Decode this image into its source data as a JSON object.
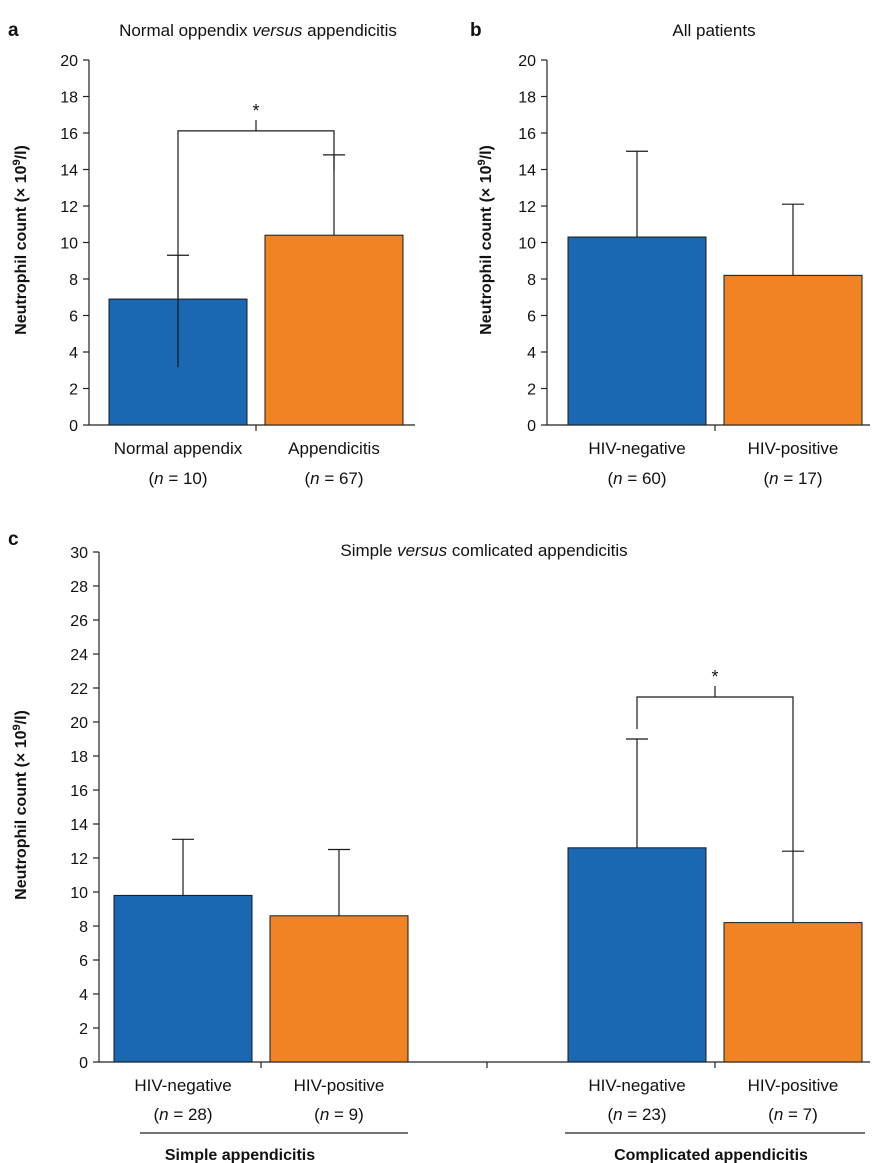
{
  "chart_data": [
    {
      "panel": "a",
      "type": "bar",
      "title_parts": [
        {
          "text": "Normal oppendix ",
          "italic": false
        },
        {
          "text": "versus",
          "italic": true
        },
        {
          "text": " appendicitis",
          "italic": false
        }
      ],
      "ylabel": "Neutrophil count (× 10",
      "ylabel_sup": "9",
      "ylabel_tail": "/l)",
      "ylim": [
        0,
        20
      ],
      "yticks": [
        0,
        2,
        4,
        6,
        8,
        10,
        12,
        14,
        16,
        18,
        20
      ],
      "categories": [
        "Normal appendix",
        "Appendicitis"
      ],
      "n_labels": [
        {
          "pre": "(",
          "n": "n",
          "post": " = 10)"
        },
        {
          "pre": "(",
          "n": "n",
          "post": " = 67)"
        }
      ],
      "values": [
        6.9,
        10.4
      ],
      "errors": [
        2.4,
        4.4
      ],
      "colors": [
        "#1a67b2",
        "#f08323"
      ],
      "significance": [
        {
          "between": [
            0,
            1
          ],
          "label": "*"
        }
      ]
    },
    {
      "panel": "b",
      "type": "bar",
      "title_parts": [
        {
          "text": "All patients",
          "italic": false
        }
      ],
      "ylabel": "Neutrophil count (× 10",
      "ylabel_sup": "9",
      "ylabel_tail": "/l)",
      "ylim": [
        0,
        20
      ],
      "yticks": [
        0,
        2,
        4,
        6,
        8,
        10,
        12,
        14,
        16,
        18,
        20
      ],
      "categories": [
        "HIV-negative",
        "HIV-positive"
      ],
      "n_labels": [
        {
          "pre": "(",
          "n": "n",
          "post": " = 60)"
        },
        {
          "pre": "(",
          "n": "n",
          "post": " = 17)"
        }
      ],
      "values": [
        10.3,
        8.2
      ],
      "errors": [
        4.7,
        3.9
      ],
      "colors": [
        "#1a67b2",
        "#f08323"
      ],
      "significance": []
    },
    {
      "panel": "c",
      "type": "bar",
      "title_parts": [
        {
          "text": "Simple ",
          "italic": false
        },
        {
          "text": "versus",
          "italic": true
        },
        {
          "text": " comlicated appendicitis",
          "italic": false
        }
      ],
      "ylabel": "Neutrophil count (× 10",
      "ylabel_sup": "9",
      "ylabel_tail": "/l)",
      "ylim": [
        0,
        30
      ],
      "yticks": [
        0,
        2,
        4,
        6,
        8,
        10,
        12,
        14,
        16,
        18,
        20,
        22,
        24,
        26,
        28,
        30
      ],
      "categories": [
        "HIV-negative",
        "HIV-positive",
        "HIV-negative",
        "HIV-positive"
      ],
      "n_labels": [
        {
          "pre": "(",
          "n": "n",
          "post": " = 28)"
        },
        {
          "pre": "(",
          "n": "n",
          "post": " = 9)"
        },
        {
          "pre": "(",
          "n": "n",
          "post": " = 23)"
        },
        {
          "pre": "(",
          "n": "n",
          "post": " = 7)"
        }
      ],
      "groups": [
        "Simple appendicitis",
        "Complicated appendicitis"
      ],
      "values": [
        9.8,
        8.6,
        12.6,
        8.2
      ],
      "errors": [
        3.3,
        3.9,
        6.4,
        4.2
      ],
      "colors": [
        "#1a67b2",
        "#f08323",
        "#1a67b2",
        "#f08323"
      ],
      "significance": [
        {
          "between": [
            2,
            3
          ],
          "label": "*"
        }
      ]
    }
  ]
}
